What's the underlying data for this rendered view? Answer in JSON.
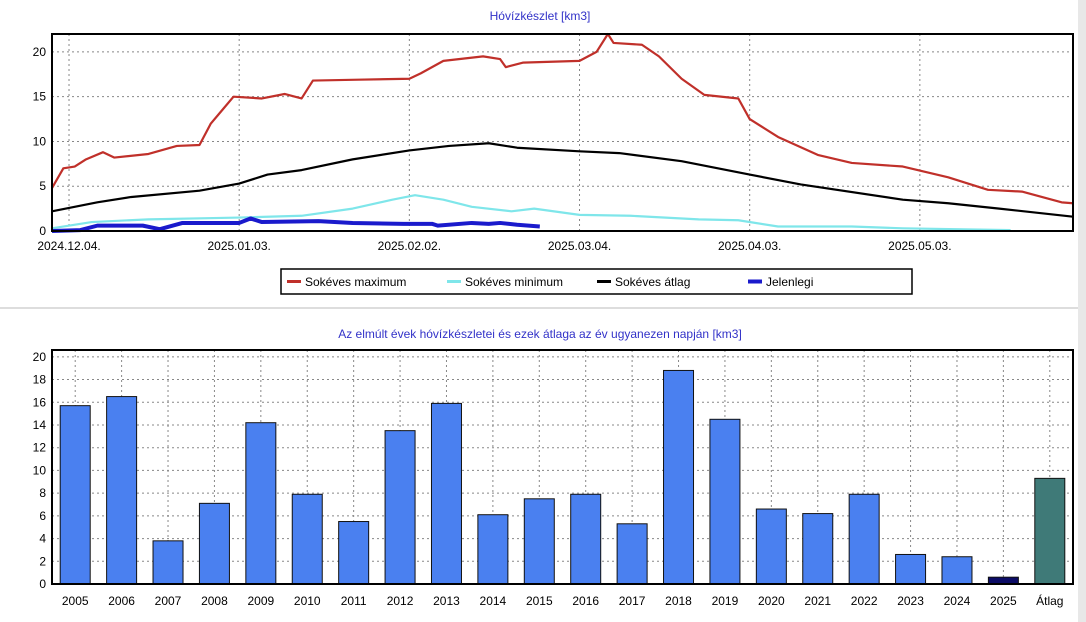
{
  "chart_data": [
    {
      "type": "line",
      "title": "Hóvízkészlet [km3]",
      "x_unit": "days since 2024.12.01",
      "xlim": [
        0,
        180
      ],
      "ylim": [
        0,
        22
      ],
      "yticks": [
        0,
        5,
        10,
        15,
        20
      ],
      "xticks": [
        {
          "day": 3,
          "label": "2024.12.04."
        },
        {
          "day": 33,
          "label": "2025.01.03."
        },
        {
          "day": 63,
          "label": "2025.02.02."
        },
        {
          "day": 93,
          "label": "2025.03.04."
        },
        {
          "day": 123,
          "label": "2025.04.03."
        },
        {
          "day": 153,
          "label": "2025.05.03."
        }
      ],
      "grid": true,
      "legend": "bottom",
      "series": [
        {
          "name": "Sokéves maximum",
          "color": "#c0302a",
          "points": [
            [
              0,
              4.8
            ],
            [
              2,
              7
            ],
            [
              4,
              7.2
            ],
            [
              6,
              8
            ],
            [
              9,
              8.8
            ],
            [
              11,
              8.2
            ],
            [
              17,
              8.6
            ],
            [
              22,
              9.5
            ],
            [
              26,
              9.6
            ],
            [
              28,
              12
            ],
            [
              30,
              13.5
            ],
            [
              32,
              15
            ],
            [
              37,
              14.8
            ],
            [
              41,
              15.3
            ],
            [
              44,
              14.8
            ],
            [
              46,
              16.8
            ],
            [
              54,
              16.9
            ],
            [
              63,
              17
            ],
            [
              65,
              17.6
            ],
            [
              69,
              19
            ],
            [
              76,
              19.5
            ],
            [
              79,
              19.2
            ],
            [
              80,
              18.3
            ],
            [
              83,
              18.8
            ],
            [
              93,
              19
            ],
            [
              96,
              20
            ],
            [
              98,
              22
            ],
            [
              99,
              21
            ],
            [
              104,
              20.8
            ],
            [
              107,
              19.5
            ],
            [
              111,
              17
            ],
            [
              115,
              15.2
            ],
            [
              121,
              14.8
            ],
            [
              123,
              12.5
            ],
            [
              128,
              10.5
            ],
            [
              135,
              8.5
            ],
            [
              141,
              7.6
            ],
            [
              150,
              7.2
            ],
            [
              158,
              6
            ],
            [
              165,
              4.6
            ],
            [
              171,
              4.4
            ],
            [
              178,
              3.2
            ],
            [
              180,
              3.1
            ]
          ]
        },
        {
          "name": "Sokéves minimum",
          "color": "#7fe6ea",
          "points": [
            [
              0,
              0.3
            ],
            [
              7,
              1
            ],
            [
              17,
              1.3
            ],
            [
              33,
              1.5
            ],
            [
              44,
              1.7
            ],
            [
              53,
              2.5
            ],
            [
              60,
              3.5
            ],
            [
              64,
              4
            ],
            [
              69,
              3.5
            ],
            [
              74,
              2.7
            ],
            [
              81,
              2.2
            ],
            [
              85,
              2.5
            ],
            [
              93,
              1.8
            ],
            [
              102,
              1.7
            ],
            [
              114,
              1.3
            ],
            [
              121,
              1.2
            ],
            [
              128,
              0.5
            ],
            [
              141,
              0.5
            ],
            [
              150,
              0.3
            ],
            [
              169,
              0.1
            ]
          ]
        },
        {
          "name": "Sokéves átlag",
          "color": "#000000",
          "points": [
            [
              0,
              2.2
            ],
            [
              8,
              3.2
            ],
            [
              14,
              3.8
            ],
            [
              26,
              4.5
            ],
            [
              33,
              5.3
            ],
            [
              38,
              6.3
            ],
            [
              44,
              6.8
            ],
            [
              53,
              8
            ],
            [
              63,
              9
            ],
            [
              70,
              9.5
            ],
            [
              77,
              9.8
            ],
            [
              82,
              9.3
            ],
            [
              93,
              8.9
            ],
            [
              100,
              8.7
            ],
            [
              111,
              7.8
            ],
            [
              123,
              6.3
            ],
            [
              132,
              5.2
            ],
            [
              150,
              3.5
            ],
            [
              158,
              3.1
            ],
            [
              167,
              2.5
            ],
            [
              180,
              1.6
            ]
          ]
        },
        {
          "name": "Jelenlegi",
          "color": "#1a1acc",
          "points": [
            [
              0,
              0
            ],
            [
              5,
              0.1
            ],
            [
              8,
              0.6
            ],
            [
              16,
              0.6
            ],
            [
              19,
              0.2
            ],
            [
              23,
              0.9
            ],
            [
              33,
              0.9
            ],
            [
              35,
              1.4
            ],
            [
              37,
              1.0
            ],
            [
              47,
              1.1
            ],
            [
              53,
              0.9
            ],
            [
              62,
              0.8
            ],
            [
              67,
              0.8
            ],
            [
              68,
              0.6
            ],
            [
              74,
              0.9
            ],
            [
              77,
              0.8
            ],
            [
              79,
              0.9
            ],
            [
              82,
              0.7
            ],
            [
              86,
              0.5
            ]
          ]
        }
      ]
    },
    {
      "type": "bar",
      "title": "Az elmúlt évek hóvízkészletei és ezek átlaga az év ugyanezen napján [km3]",
      "ylim": [
        0,
        20.6
      ],
      "yticks": [
        0,
        2,
        4,
        6,
        8,
        10,
        12,
        14,
        16,
        18,
        20
      ],
      "grid": true,
      "categories": [
        "2005",
        "2006",
        "2007",
        "2008",
        "2009",
        "2010",
        "2011",
        "2012",
        "2013",
        "2014",
        "2015",
        "2016",
        "2017",
        "2018",
        "2019",
        "2020",
        "2021",
        "2022",
        "2023",
        "2024",
        "2025",
        "Átlag"
      ],
      "values": [
        15.7,
        16.5,
        3.8,
        7.1,
        14.2,
        7.9,
        5.5,
        13.5,
        15.9,
        6.1,
        7.5,
        7.9,
        5.3,
        18.8,
        14.5,
        6.6,
        6.2,
        7.9,
        2.6,
        2.4,
        0.6,
        9.3
      ],
      "colors": {
        "default": "#4a80f0",
        "current": "#0c0c66",
        "average": "#3f7a78"
      }
    }
  ]
}
